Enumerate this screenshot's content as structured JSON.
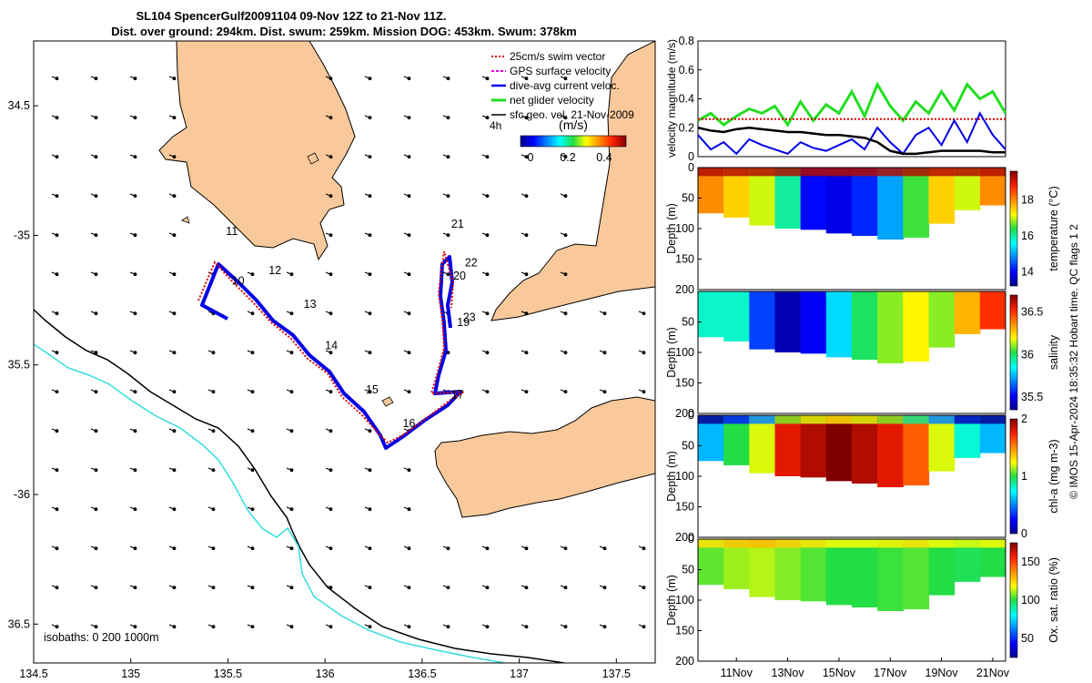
{
  "title": {
    "line1": "SL104 SpencerGulf20091104 09-Nov 12Z to 21-Nov 11Z.",
    "line2": "Dist. over ground: 294km. Dist. swum: 259km. Mission DOG: 453km. Swum: 378km"
  },
  "map": {
    "lon_ticks": [
      "134.5",
      "135",
      "135.5",
      "136",
      "136.5",
      "137",
      "137.5"
    ],
    "lat_ticks": [
      "34.5",
      "-35",
      "35.5",
      "-36",
      "36.5"
    ],
    "isobath_text": "isobaths: 0   200  1000m",
    "legend": [
      {
        "label": "25cm/s swim vector",
        "color": "#e60000"
      },
      {
        "label": "GPS surface velocity",
        "color": "#e600e6"
      },
      {
        "label": "dive-avg current veloc.",
        "color": "#0000e6"
      },
      {
        "label": "net glider velocity",
        "color": "#22dd22"
      },
      {
        "label": "sfc geo. vel. 21-Nov-2009",
        "color": "#000000"
      }
    ],
    "legend_extra": "4h",
    "colorbar_title": "(m/s)",
    "colorbar_ticks": [
      "0",
      "0.2",
      "0.4"
    ],
    "waypoints": [
      {
        "label": "10",
        "lon": 135.52,
        "lat": -35.19
      },
      {
        "label": "11",
        "lon": 135.49,
        "lat": -34.998
      },
      {
        "label": "12",
        "lon": 135.71,
        "lat": -35.15
      },
      {
        "label": "13",
        "lon": 135.89,
        "lat": -35.28
      },
      {
        "label": "14",
        "lon": 136.0,
        "lat": -35.44
      },
      {
        "label": "15",
        "lon": 136.21,
        "lat": -35.61
      },
      {
        "label": "16",
        "lon": 136.4,
        "lat": -35.74
      },
      {
        "label": "17",
        "lon": 136.65,
        "lat": -35.63
      },
      {
        "label": "19",
        "lon": 136.68,
        "lat": -35.35
      },
      {
        "label": "20",
        "lon": 136.66,
        "lat": -35.17
      },
      {
        "label": "21",
        "lon": 136.65,
        "lat": -34.97
      },
      {
        "label": "22",
        "lon": 136.72,
        "lat": -35.12
      },
      {
        "label": "23",
        "lon": 136.71,
        "lat": -35.33
      }
    ],
    "colors": {
      "land": "#f9c99b",
      "track": "#0000e6",
      "swim": "#e60000",
      "coast": "#000000",
      "isobath1000": "#33dddd"
    }
  },
  "chart_data": [
    {
      "type": "line",
      "ylabel": "velocity magnitude (m/s)",
      "ylim": [
        0,
        0.8
      ],
      "yticks": [
        "0",
        "0.2",
        "0.4",
        "0.6",
        "0.8"
      ],
      "x_days": [
        9.5,
        10,
        10.5,
        11,
        11.5,
        12,
        12.5,
        13,
        13.5,
        14,
        14.5,
        15,
        15.5,
        16,
        16.5,
        17,
        17.5,
        18,
        18.5,
        19,
        19.5,
        20,
        20.5,
        21,
        21.5
      ],
      "series": [
        {
          "name": "net glider velocity",
          "color": "#22dd22",
          "values": [
            0.25,
            0.3,
            0.22,
            0.28,
            0.33,
            0.3,
            0.35,
            0.22,
            0.38,
            0.25,
            0.36,
            0.3,
            0.45,
            0.28,
            0.5,
            0.35,
            0.25,
            0.38,
            0.3,
            0.45,
            0.32,
            0.5,
            0.4,
            0.45,
            0.3
          ]
        },
        {
          "name": "swim speed",
          "color": "#e60000",
          "values": [
            0.26,
            0.26,
            0.26,
            0.26,
            0.26,
            0.26,
            0.26,
            0.26,
            0.26,
            0.26,
            0.26,
            0.26,
            0.26,
            0.26,
            0.26,
            0.26,
            0.26,
            0.26,
            0.26,
            0.26,
            0.26,
            0.26,
            0.26,
            0.26,
            0.26
          ]
        },
        {
          "name": "dive-avg current",
          "color": "#0000e6",
          "values": [
            0.15,
            0.05,
            0.1,
            0.02,
            0.12,
            0.08,
            0.05,
            0.02,
            0.1,
            0.06,
            0.04,
            0.08,
            0.12,
            0.05,
            0.2,
            0.1,
            0.02,
            0.15,
            0.2,
            0.08,
            0.25,
            0.1,
            0.3,
            0.15,
            0.05
          ]
        },
        {
          "name": "sfc geo vel",
          "color": "#000000",
          "values": [
            0.2,
            0.18,
            0.17,
            0.19,
            0.2,
            0.19,
            0.18,
            0.17,
            0.17,
            0.16,
            0.15,
            0.15,
            0.14,
            0.13,
            0.1,
            0.04,
            0.02,
            0.02,
            0.03,
            0.04,
            0.04,
            0.04,
            0.04,
            0.03,
            0.03
          ]
        }
      ]
    },
    {
      "type": "heatmap",
      "ylabel": "Depth (m)",
      "cblabel": "temperature (°C)",
      "yticks": [
        "0",
        "50",
        "100",
        "150",
        "200"
      ],
      "cbticks": [
        "14",
        "16",
        "18"
      ],
      "cbrange": [
        13.2,
        19.6
      ],
      "values": [
        18,
        17.5,
        17,
        16,
        14,
        13.8,
        14.2,
        15,
        16.5,
        17.5,
        17,
        18
      ]
    },
    {
      "type": "heatmap",
      "ylabel": "Depth (m)",
      "cblabel": "salinity",
      "yticks": [
        "50",
        "100",
        "150",
        "200"
      ],
      "cbticks": [
        "35.5",
        "36",
        "36.5"
      ],
      "cbrange": [
        35.35,
        36.7
      ],
      "values": [
        35.9,
        35.9,
        35.6,
        35.4,
        35.5,
        35.8,
        36.0,
        36.1,
        36.2,
        36.1,
        36.3,
        36.5
      ]
    },
    {
      "type": "heatmap",
      "ylabel": "Depth (m)",
      "cblabel": "chl-a (mg m-3)",
      "yticks": [
        "0",
        "50",
        "100",
        "150",
        "200"
      ],
      "cbticks": [
        "0",
        "1",
        "2"
      ],
      "cbrange": [
        0,
        2
      ],
      "values": [
        0.6,
        1.0,
        1.2,
        1.8,
        1.9,
        2.0,
        1.9,
        1.8,
        1.6,
        1.2,
        0.8,
        0.6
      ]
    },
    {
      "type": "heatmap",
      "ylabel": "Depth (m)",
      "cblabel": "Ox. sat. ratio (%)",
      "yticks": [
        "0",
        "50",
        "100",
        "150",
        "200"
      ],
      "cbticks": [
        "50",
        "100",
        "150"
      ],
      "cbrange": [
        25,
        175
      ],
      "values": [
        105,
        110,
        112,
        108,
        104,
        100,
        100,
        102,
        104,
        100,
        98,
        100
      ]
    }
  ],
  "xaxis_ticks": [
    "11Nov",
    "13Nov",
    "15Nov",
    "17Nov",
    "19Nov",
    "21Nov"
  ],
  "side_note": "© IMOS 15-Apr-2024 18:35:32 Hobart time. QC flags 1  2"
}
